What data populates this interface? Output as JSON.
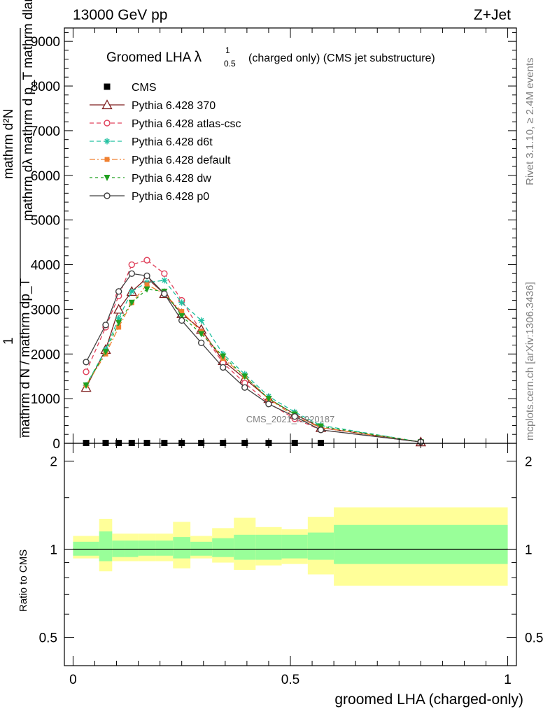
{
  "header": {
    "energy": "13000 GeV pp",
    "process": "Z+Jet",
    "title_main": "Groomed LHA ",
    "title_symbol": "λ",
    "title_sup": "1",
    "title_sub": "0.5",
    "title_tail": "(charged only) (CMS jet substructure)",
    "rivet": "Rivet 3.1.10, ≥ 2.4M events",
    "mcplots": "mcplots.cern.ch [arXiv:1306.3436]",
    "watermark": "CMS_2021_I1920187"
  },
  "ylabel_top": {
    "lines": [
      "mathrm d²N",
      "mathrm dλ mathrm d p_T mathrm dlambda"
    ],
    "one": "1",
    "denominator": "mathrm d N / mathrm dp_T"
  },
  "ylabel_ratio": "Ratio to CMS",
  "xlabel": "groomed LHA (charged-only)",
  "colors": {
    "cms": "#000000",
    "p370": "#7f1d1d",
    "atlas": "#e0405a",
    "d6t": "#20c0a0",
    "default": "#f08030",
    "dw": "#20a020",
    "p0": "#404040",
    "band_inner": "#99ff99",
    "band_outer": "#ffff99"
  },
  "chart_data": [
    {
      "type": "line",
      "name": "main",
      "xlim": [
        -0.02,
        1.02
      ],
      "ylim": [
        0,
        9300
      ],
      "yticks": [
        0,
        1000,
        2000,
        3000,
        4000,
        5000,
        6000,
        7000,
        8000,
        9000
      ],
      "ytick_labels": [
        "0",
        "1000",
        "2000",
        "3000",
        "4000",
        "5000",
        "6000",
        "7000",
        "8000",
        "9000"
      ],
      "x": [
        0.03,
        0.075,
        0.105,
        0.135,
        0.17,
        0.21,
        0.25,
        0.295,
        0.345,
        0.395,
        0.45,
        0.51,
        0.57,
        0.8
      ],
      "series": [
        {
          "name": "CMS",
          "marker": "square",
          "color": "#000000",
          "dash": "",
          "values": [
            1,
            1,
            1,
            1,
            1,
            1,
            1,
            1,
            1,
            1,
            1,
            1,
            1,
            1
          ]
        },
        {
          "name": "Pythia 6.428 370",
          "marker": "triangle-open",
          "color": "#7f1d1d",
          "dash": "",
          "values": [
            1250,
            2100,
            3000,
            3400,
            3700,
            3350,
            2900,
            2550,
            1850,
            1450,
            1000,
            650,
            350,
            30
          ]
        },
        {
          "name": "Pythia 6.428 atlas-csc",
          "marker": "circle-open",
          "color": "#e0405a",
          "dash": "6,4",
          "values": [
            1600,
            2600,
            3300,
            4000,
            4100,
            3800,
            3200,
            2500,
            1800,
            1350,
            900,
            550,
            300,
            30
          ]
        },
        {
          "name": "Pythia 6.428 d6t",
          "marker": "star",
          "color": "#20c0a0",
          "dash": "6,4",
          "values": [
            1300,
            2100,
            2800,
            3400,
            3600,
            3650,
            3150,
            2750,
            2000,
            1550,
            1050,
            700,
            400,
            30
          ]
        },
        {
          "name": "Pythia 6.428 default",
          "marker": "square-filled",
          "color": "#f08030",
          "dash": "8,3,2,3",
          "values": [
            1300,
            2000,
            2600,
            3150,
            3550,
            3350,
            2950,
            2500,
            1900,
            1500,
            1000,
            600,
            350,
            30
          ]
        },
        {
          "name": "Pythia 6.428 dw",
          "marker": "triangle-down",
          "color": "#20a020",
          "dash": "4,4",
          "values": [
            1300,
            2050,
            2700,
            3150,
            3450,
            3400,
            2850,
            2450,
            1950,
            1500,
            1000,
            650,
            380,
            30
          ]
        },
        {
          "name": "Pythia 6.428 p0",
          "marker": "circle-open",
          "color": "#404040",
          "dash": "",
          "values": [
            1820,
            2650,
            3400,
            3800,
            3750,
            3350,
            2750,
            2250,
            1700,
            1250,
            880,
            600,
            300,
            30
          ]
        }
      ]
    },
    {
      "type": "area",
      "name": "ratio",
      "xlim": [
        -0.02,
        1.02
      ],
      "ylog": true,
      "ylim": [
        0.4,
        2.3
      ],
      "yticks": [
        0.5,
        1,
        2
      ],
      "ytick_labels": [
        "0.5",
        "1",
        "2"
      ],
      "xticks": [
        0,
        0.5,
        1
      ],
      "xtick_labels": [
        "0",
        "0.5",
        "1"
      ],
      "bins": [
        0.0,
        0.06,
        0.09,
        0.12,
        0.15,
        0.19,
        0.23,
        0.27,
        0.32,
        0.37,
        0.42,
        0.48,
        0.54,
        0.6,
        1.0
      ],
      "inner_hi": [
        1.06,
        1.15,
        1.07,
        1.07,
        1.07,
        1.07,
        1.1,
        1.06,
        1.09,
        1.12,
        1.12,
        1.12,
        1.14,
        1.21
      ],
      "inner_lo": [
        0.95,
        0.91,
        0.94,
        0.94,
        0.95,
        0.95,
        0.93,
        0.95,
        0.94,
        0.92,
        0.92,
        0.93,
        0.92,
        0.89
      ],
      "outer_hi": [
        1.11,
        1.27,
        1.13,
        1.13,
        1.13,
        1.13,
        1.24,
        1.11,
        1.18,
        1.28,
        1.19,
        1.17,
        1.29,
        1.39
      ],
      "outer_lo": [
        0.93,
        0.84,
        0.91,
        0.91,
        0.91,
        0.91,
        0.86,
        0.93,
        0.9,
        0.85,
        0.88,
        0.89,
        0.82,
        0.75
      ],
      "reference": 1
    }
  ]
}
